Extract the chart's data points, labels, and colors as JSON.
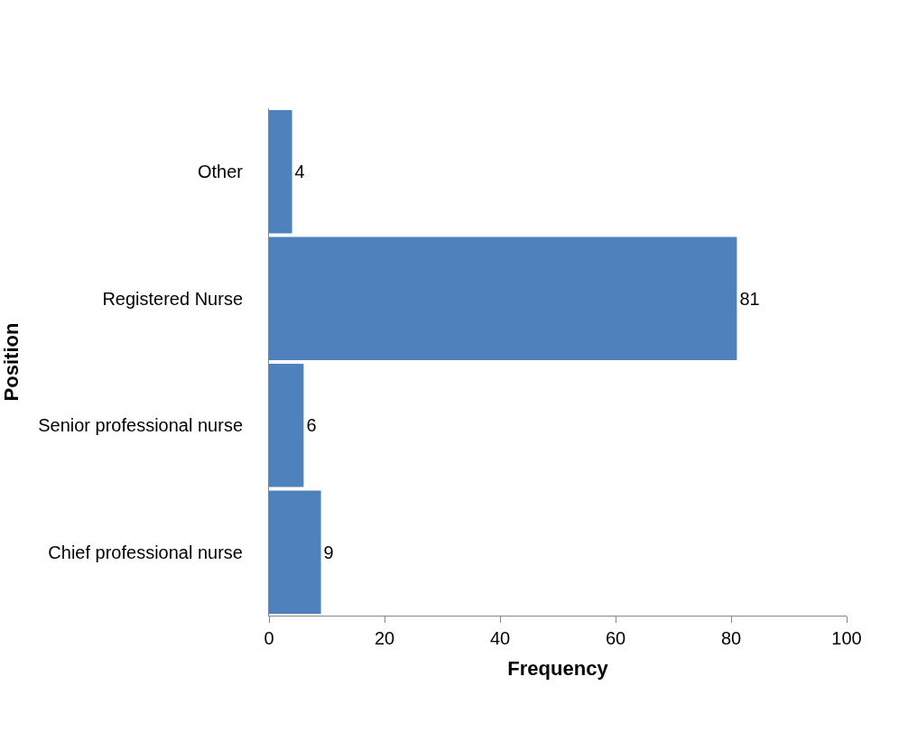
{
  "chart_data": {
    "type": "bar",
    "orientation": "horizontal",
    "categories": [
      "Other",
      "Registered Nurse",
      "Senior professional nurse",
      "Chief professional nurse"
    ],
    "values": [
      4,
      81,
      6,
      9
    ],
    "color": "#4f81bd",
    "xlim": [
      0,
      100
    ],
    "xticks": [
      0,
      20,
      40,
      60,
      80,
      100
    ],
    "xlabel": "Frequency",
    "ylabel": "Position",
    "data_labels": true
  }
}
